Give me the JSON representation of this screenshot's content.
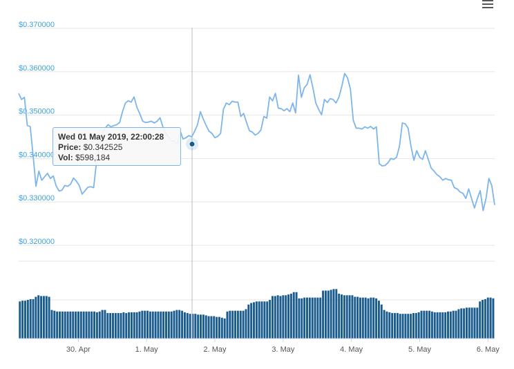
{
  "menu": {
    "icon": "hamburger-menu-icon"
  },
  "tooltip": {
    "date": "Wed 01 May 2019, 22:00:28",
    "price_label": "Price:",
    "price": "$0.342525",
    "vol_label": "Vol:",
    "vol": "$598,184"
  },
  "colors": {
    "line": "#7cb5ec",
    "bars": "#1a5b8e",
    "axis_label": "#3aa0e0",
    "grid": "#e6e6e6"
  },
  "chart_data": {
    "type": "line",
    "price": {
      "yticks": [
        "$0.370000",
        "$0.360000",
        "$0.350000",
        "$0.340000",
        "$0.330000",
        "$0.320000"
      ],
      "ylim": [
        0.32,
        0.37
      ],
      "values": [
        0.3542,
        0.3528,
        0.3533,
        0.3468,
        0.3466,
        0.34,
        0.3328,
        0.3363,
        0.3342,
        0.335,
        0.3358,
        0.3346,
        0.3352,
        0.3329,
        0.3317,
        0.3319,
        0.333,
        0.3328,
        0.3333,
        0.3347,
        0.334,
        0.333,
        0.331,
        0.3318,
        0.3326,
        0.3327,
        0.3325,
        0.3385,
        0.342,
        0.345,
        0.3462,
        0.347,
        0.3465,
        0.3468,
        0.347,
        0.3475,
        0.35,
        0.352,
        0.3525,
        0.3522,
        0.3534,
        0.351,
        0.3495,
        0.3478,
        0.3475,
        0.3476,
        0.3478,
        0.3474,
        0.3478,
        0.3486,
        0.3465,
        0.345,
        0.344,
        0.3433,
        0.3432,
        0.3425,
        0.3455,
        0.3437,
        0.344,
        0.3445,
        0.3442,
        0.3455,
        0.347,
        0.35,
        0.3483,
        0.3468,
        0.3455,
        0.345,
        0.344,
        0.3443,
        0.345,
        0.3506,
        0.352,
        0.3516,
        0.3524,
        0.3522,
        0.3522,
        0.3489,
        0.3496,
        0.3475,
        0.3456,
        0.3453,
        0.3446,
        0.345,
        0.3458,
        0.3489,
        0.3485,
        0.3534,
        0.3525,
        0.3542,
        0.3508,
        0.3507,
        0.3502,
        0.3507,
        0.35,
        0.352,
        0.3497,
        0.3584,
        0.3533,
        0.3555,
        0.3563,
        0.3585,
        0.3555,
        0.352,
        0.3505,
        0.3493,
        0.3528,
        0.3521,
        0.353,
        0.3528,
        0.352,
        0.3533,
        0.3558,
        0.3588,
        0.3578,
        0.3552,
        0.348,
        0.3462,
        0.3462,
        0.346,
        0.3465,
        0.3462,
        0.3466,
        0.346,
        0.3465,
        0.338,
        0.3375,
        0.3376,
        0.3382,
        0.3392,
        0.339,
        0.3395,
        0.342,
        0.3474,
        0.3472,
        0.3462,
        0.342,
        0.3388,
        0.341,
        0.3395,
        0.339,
        0.341,
        0.339,
        0.337,
        0.3363,
        0.3355,
        0.335,
        0.3342,
        0.3346,
        0.3343,
        0.3342,
        0.3325,
        0.3322,
        0.3315,
        0.3312,
        0.33,
        0.3322,
        0.33,
        0.3278,
        0.33,
        0.3318,
        0.3272,
        0.33,
        0.3346,
        0.333,
        0.3285
      ]
    },
    "volume": {
      "values": [
        0.48,
        0.49,
        0.49,
        0.5,
        0.51,
        0.51,
        0.54,
        0.56,
        0.55,
        0.55,
        0.55,
        0.54,
        0.37,
        0.36,
        0.35,
        0.35,
        0.35,
        0.35,
        0.35,
        0.35,
        0.35,
        0.35,
        0.35,
        0.35,
        0.35,
        0.35,
        0.35,
        0.35,
        0.35,
        0.34,
        0.35,
        0.37,
        0.37,
        0.33,
        0.33,
        0.33,
        0.33,
        0.33,
        0.33,
        0.34,
        0.33,
        0.34,
        0.34,
        0.34,
        0.34,
        0.35,
        0.36,
        0.36,
        0.36,
        0.35,
        0.35,
        0.35,
        0.35,
        0.35,
        0.35,
        0.35,
        0.35,
        0.35,
        0.36,
        0.37,
        0.37,
        0.36,
        0.34,
        0.33,
        0.32,
        0.32,
        0.32,
        0.31,
        0.31,
        0.31,
        0.3,
        0.29,
        0.29,
        0.29,
        0.28,
        0.28,
        0.27,
        0.26,
        0.35,
        0.36,
        0.36,
        0.36,
        0.36,
        0.36,
        0.36,
        0.38,
        0.44,
        0.46,
        0.47,
        0.48,
        0.48,
        0.48,
        0.48,
        0.48,
        0.5,
        0.55,
        0.55,
        0.56,
        0.55,
        0.56,
        0.56,
        0.57,
        0.58,
        0.6,
        0.6,
        0.52,
        0.52,
        0.53,
        0.53,
        0.53,
        0.53,
        0.53,
        0.53,
        0.53,
        0.62,
        0.62,
        0.62,
        0.63,
        0.64,
        0.64,
        0.58,
        0.57,
        0.56,
        0.56,
        0.56,
        0.56,
        0.54,
        0.54,
        0.53,
        0.53,
        0.53,
        0.52,
        0.53,
        0.53,
        0.52,
        0.49,
        0.44,
        0.37,
        0.35,
        0.34,
        0.33,
        0.33,
        0.33,
        0.32,
        0.32,
        0.32,
        0.32,
        0.32,
        0.33,
        0.33,
        0.34,
        0.36,
        0.36,
        0.36,
        0.36,
        0.35,
        0.34,
        0.34,
        0.34,
        0.34,
        0.34,
        0.35,
        0.35,
        0.36,
        0.36,
        0.38,
        0.39,
        0.39,
        0.4,
        0.4,
        0.4,
        0.4,
        0.4,
        0.48,
        0.5,
        0.51,
        0.53,
        0.53,
        0.52
      ]
    },
    "x_labels": [
      {
        "label": "30. Apr",
        "i": 23
      },
      {
        "label": "1. May",
        "i": 58
      },
      {
        "label": "2. May",
        "i": 93
      },
      {
        "label": "3. May",
        "i": 128
      },
      {
        "label": "4. May",
        "i": 163
      },
      {
        "label": "5. May",
        "i": 198
      },
      {
        "label": "6. May",
        "i": 233
      }
    ],
    "x_count": 244,
    "hover_index": 89
  }
}
